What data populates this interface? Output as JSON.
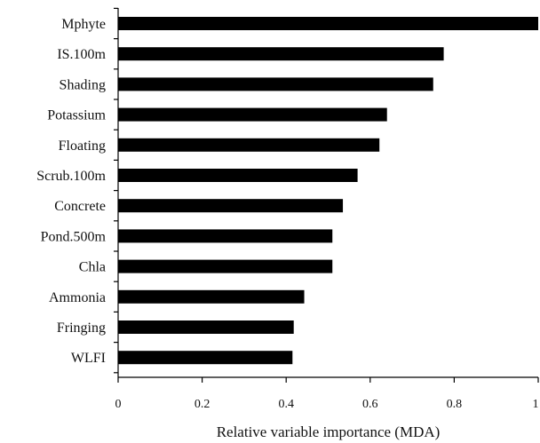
{
  "chart_data": {
    "type": "bar",
    "orientation": "horizontal",
    "categories": [
      "Mphyte",
      "IS.100m",
      "Shading",
      "Potassium",
      "Floating",
      "Scrub.100m",
      "Concrete",
      "Pond.500m",
      "Chla",
      "Ammonia",
      "Fringing",
      "WLFI"
    ],
    "values": [
      1.0,
      0.775,
      0.75,
      0.64,
      0.622,
      0.57,
      0.535,
      0.51,
      0.51,
      0.443,
      0.418,
      0.415
    ],
    "xlabel": "Relative variable importance (MDA)",
    "ylabel": "",
    "xlim": [
      0,
      1
    ],
    "xticks": [
      "0",
      "0.2",
      "0.4",
      "0.6",
      "0.8",
      "1"
    ],
    "grid": false,
    "bar_color": "#000000"
  }
}
